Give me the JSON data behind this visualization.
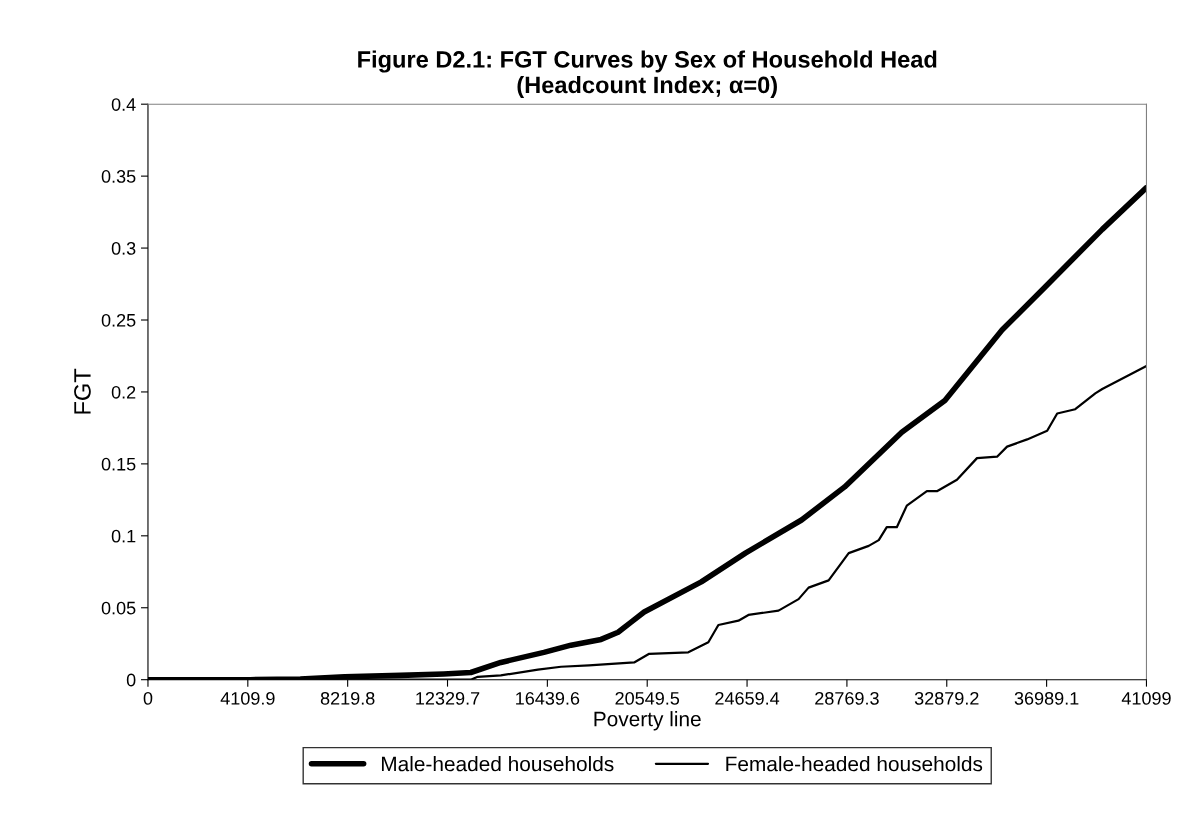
{
  "chart_data": {
    "type": "line",
    "title": "Figure D2.1: FGT Curves by Sex of Household Head\n(Headcount Index; α=0)",
    "xlabel": "Poverty line",
    "ylabel": "FGT",
    "xlim": [
      0,
      41099
    ],
    "xticks": [
      0,
      4109.9,
      8219.8,
      12329.7,
      16439.6,
      20549.5,
      24659.4,
      28769.3,
      32879.2,
      36989.1,
      41099
    ],
    "ylim": [
      0,
      0.4
    ],
    "yticks": [
      0,
      0.05,
      0.1,
      0.15,
      0.2,
      0.25,
      0.3,
      0.35,
      0.4
    ],
    "grid": false,
    "legend": "bottom",
    "marker": "none",
    "line_style": "solid",
    "series": [
      {
        "name": "Male-headed households",
        "color": "#000000",
        "x": [
          0,
          2146,
          4209,
          6272,
          8087,
          10398,
          12172,
          13286,
          14524,
          16298,
          17412,
          18650,
          19351,
          19888,
          20424,
          22776,
          24591,
          26902,
          28676,
          31028,
          32802,
          35154,
          36928,
          39280,
          41099
        ],
        "values": [
          0,
          0,
          0,
          0.0005,
          0.002,
          0.003,
          0.004,
          0.005,
          0.012,
          0.019,
          0.024,
          0.028,
          0.033,
          0.04,
          0.047,
          0.068,
          0.088,
          0.111,
          0.134,
          0.172,
          0.194,
          0.243,
          0.273,
          0.313,
          0.342
        ]
      },
      {
        "name": "Female-headed households",
        "color": "#000000",
        "x": [
          0,
          13286,
          13575,
          14524,
          16051,
          17001,
          18155,
          20012,
          20631,
          22241,
          23066,
          23479,
          24304,
          24716,
          25954,
          26780,
          27192,
          28017,
          28843,
          29667,
          30080,
          30410,
          30823,
          31235,
          32061,
          32474,
          33299,
          34124,
          34950,
          35362,
          36188,
          37013,
          37425,
          38168,
          38993,
          39280,
          41099
        ],
        "values": [
          0,
          0,
          0.002,
          0.003,
          0.007,
          0.009,
          0.01,
          0.012,
          0.018,
          0.019,
          0.026,
          0.038,
          0.041,
          0.045,
          0.048,
          0.056,
          0.064,
          0.069,
          0.088,
          0.093,
          0.097,
          0.106,
          0.106,
          0.121,
          0.131,
          0.131,
          0.139,
          0.154,
          0.155,
          0.162,
          0.167,
          0.173,
          0.185,
          0.188,
          0.199,
          0.202,
          0.218
        ]
      }
    ]
  }
}
